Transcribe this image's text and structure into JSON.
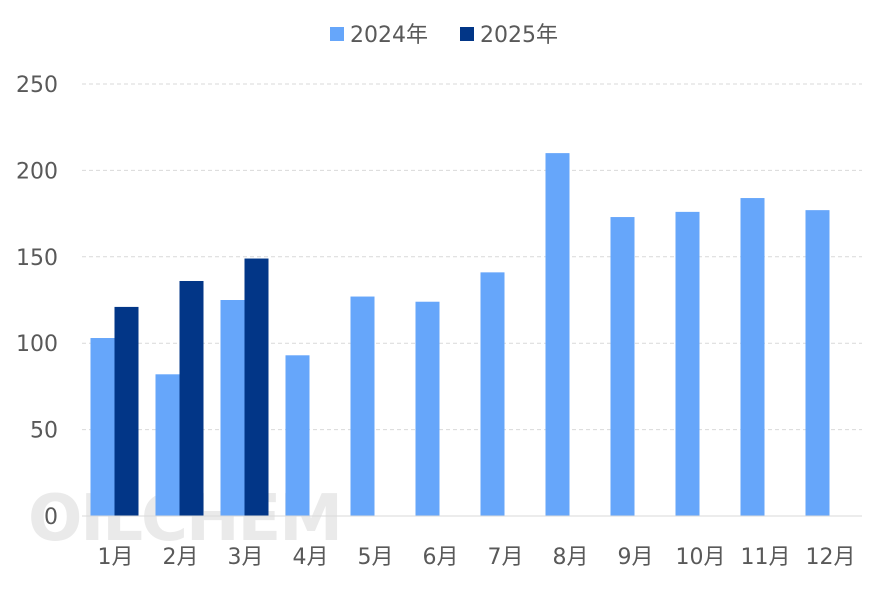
{
  "chart_data": {
    "type": "bar",
    "categories": [
      "1月",
      "2月",
      "3月",
      "4月",
      "5月",
      "6月",
      "7月",
      "8月",
      "9月",
      "10月",
      "11月",
      "12月"
    ],
    "series": [
      {
        "name": "2024年",
        "color": "#66a6fa",
        "values": [
          103,
          82,
          125,
          93,
          127,
          124,
          141,
          210,
          173,
          176,
          184,
          177
        ]
      },
      {
        "name": "2025年",
        "color": "#023687",
        "values": [
          121,
          136,
          149,
          null,
          null,
          null,
          null,
          null,
          null,
          null,
          null,
          null
        ]
      }
    ],
    "ylim": [
      0,
      250
    ],
    "yticks": [
      0,
      50,
      100,
      150,
      200,
      250
    ],
    "legend_position": "top-center",
    "grid": "horizontal-dashed"
  },
  "watermark": "OILCHEM"
}
